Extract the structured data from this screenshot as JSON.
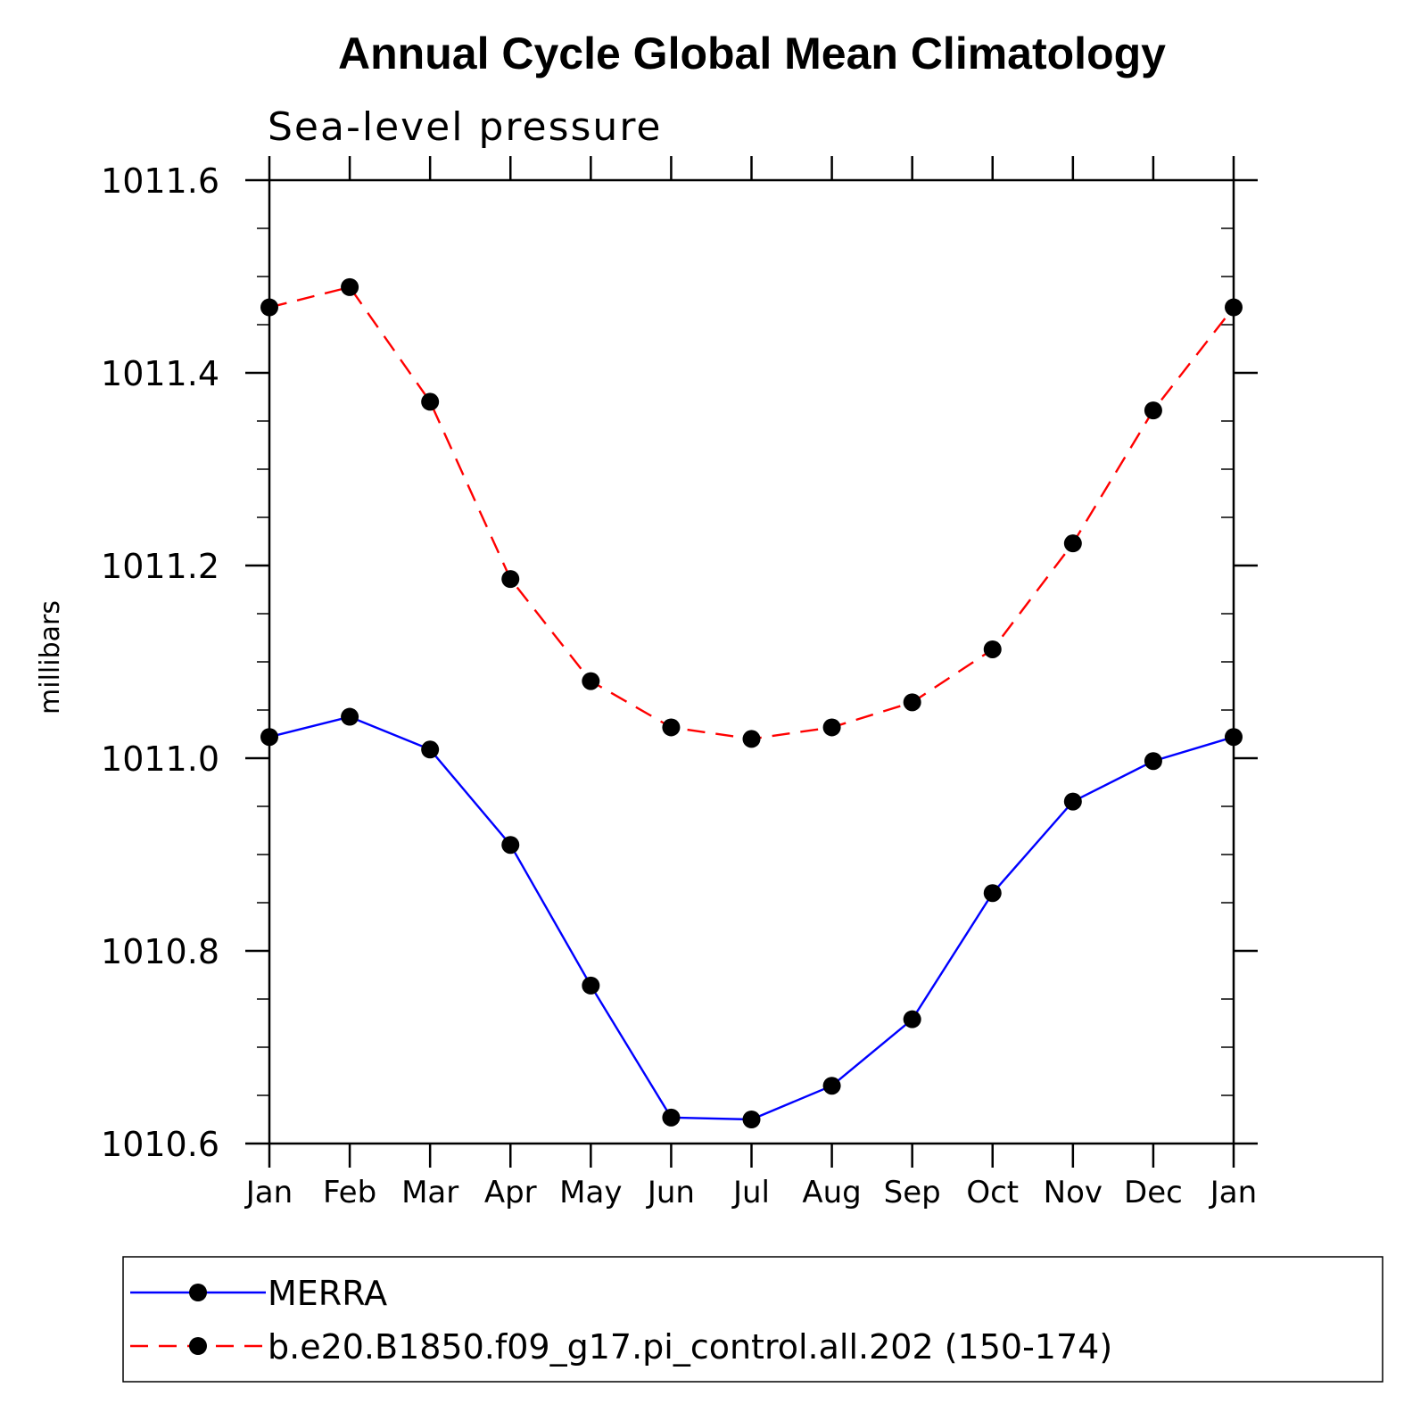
{
  "colors": {
    "series_1": "#0000ff",
    "series_2": "#ff0000",
    "markers": "#000000"
  },
  "chart_data": {
    "type": "line",
    "title": "Annual Cycle Global Mean Climatology",
    "subtitle": "Sea-level pressure",
    "xlabel": "",
    "ylabel": "millibars",
    "categories": [
      "Jan",
      "Feb",
      "Mar",
      "Apr",
      "May",
      "Jun",
      "Jul",
      "Aug",
      "Sep",
      "Oct",
      "Nov",
      "Dec",
      "Jan"
    ],
    "ylim": [
      1010.6,
      1011.6
    ],
    "yticks": [
      "1010.6",
      "1010.8",
      "1011.0",
      "1011.2",
      "1011.4",
      "1011.6"
    ],
    "y_minor_step": 0.05,
    "legend_position": "bottom",
    "series": [
      {
        "name": "MERRA",
        "line_style": "solid",
        "values": [
          1011.022,
          1011.043,
          1011.009,
          1010.91,
          1010.764,
          1010.627,
          1010.625,
          1010.66,
          1010.729,
          1010.86,
          1010.955,
          1010.997,
          1011.022
        ]
      },
      {
        "name": "b.e20.B1850.f09_g17.pi_control.all.202 (150-174)",
        "line_style": "dashed",
        "values": [
          1011.468,
          1011.489,
          1011.37,
          1011.186,
          1011.08,
          1011.032,
          1011.02,
          1011.032,
          1011.058,
          1011.113,
          1011.223,
          1011.361,
          1011.468
        ]
      }
    ]
  }
}
